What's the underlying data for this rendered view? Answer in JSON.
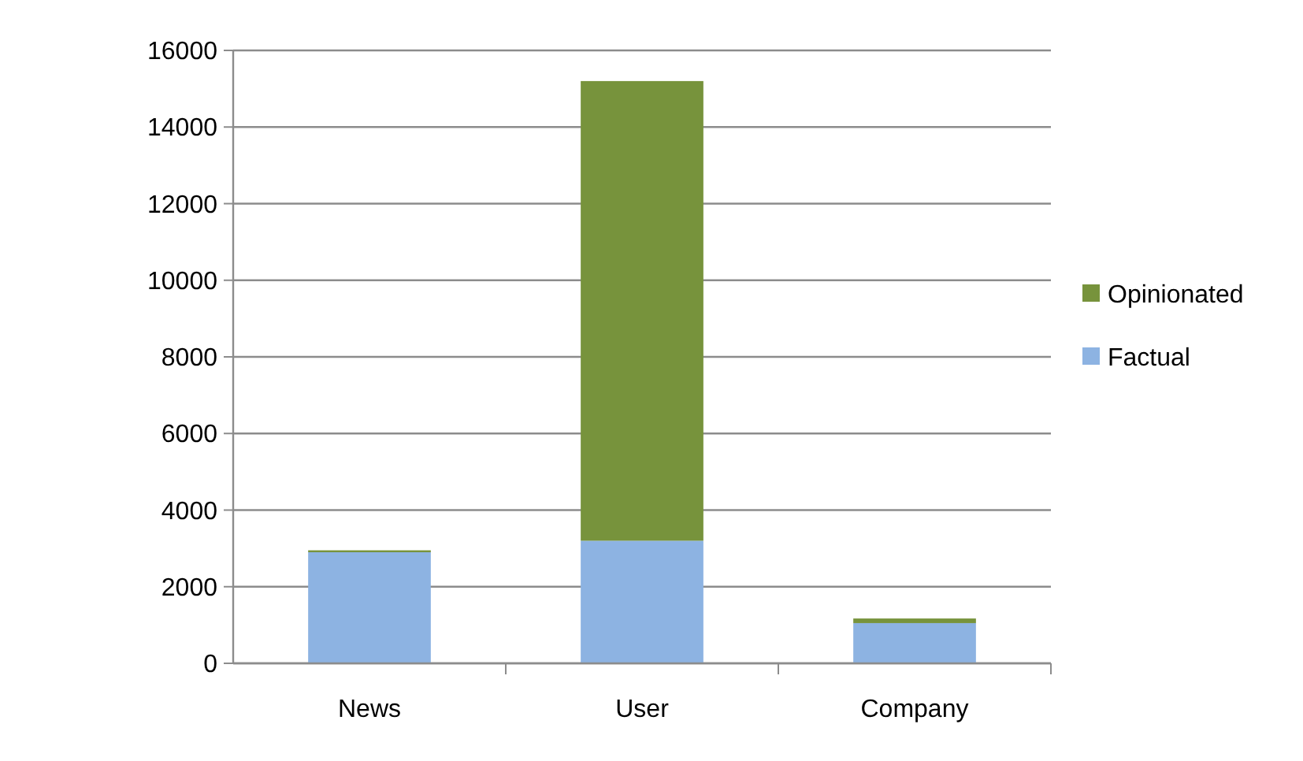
{
  "chart_data": {
    "type": "bar",
    "stacked": true,
    "categories": [
      "News",
      "User",
      "Company"
    ],
    "series": [
      {
        "name": "Factual",
        "color": "#8db3e2",
        "values": [
          2900,
          3200,
          1050
        ]
      },
      {
        "name": "Opinionated",
        "color": "#77933c",
        "values": [
          50,
          12000,
          120
        ]
      }
    ],
    "ylim": [
      0,
      16000
    ],
    "yticks": [
      0,
      2000,
      4000,
      6000,
      8000,
      10000,
      12000,
      14000,
      16000
    ],
    "grid": "y",
    "legend": "right"
  }
}
